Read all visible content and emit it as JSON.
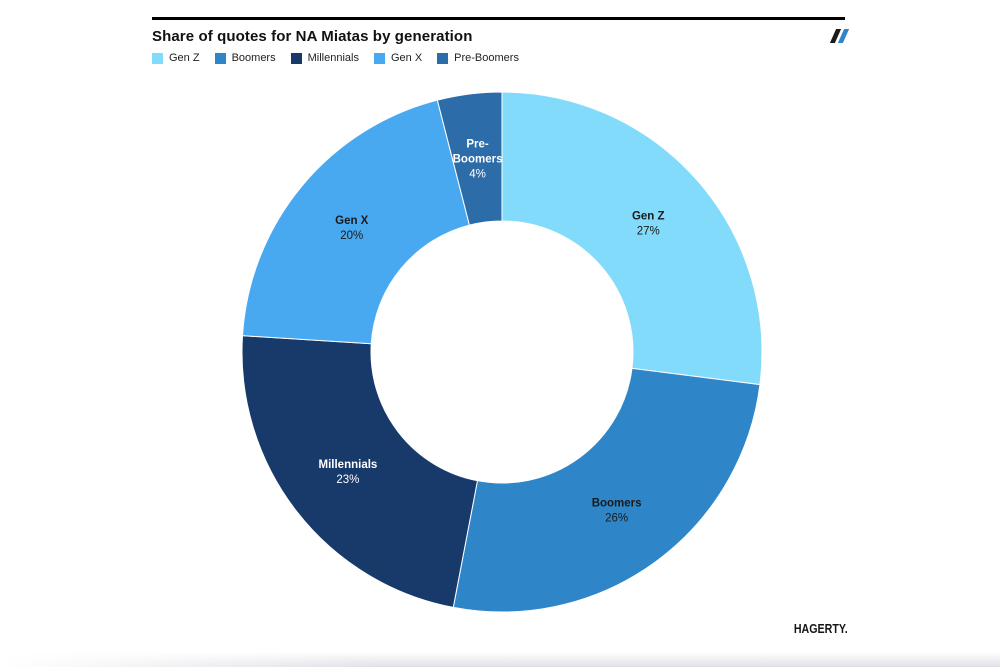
{
  "header": {
    "title": "Share of quotes for NA Miatas by generation"
  },
  "footer": {
    "brand": "HAGERTY."
  },
  "chart_data": {
    "type": "pie",
    "subtype": "donut",
    "title": "Share of quotes for NA Miatas by generation",
    "categories": [
      "Gen Z",
      "Boomers",
      "Millennials",
      "Gen X",
      "Pre-Boomers"
    ],
    "values": [
      27,
      26,
      23,
      20,
      4
    ],
    "unit": "%",
    "colors": [
      "#82dbfa",
      "#2e86c9",
      "#173a6b",
      "#48a8f0",
      "#2c6ca8"
    ],
    "slice_label_colors": [
      "#1a1a1a",
      "#1a1a1a",
      "#ffffff",
      "#1a1a1a",
      "#ffffff"
    ],
    "slice_label_lines": [
      [
        "Gen Z"
      ],
      [
        "Boomers"
      ],
      [
        "Millennials"
      ],
      [
        "Gen X"
      ],
      [
        "Pre-",
        "Boomers"
      ]
    ],
    "legend_entries": [
      "Gen Z",
      "Boomers",
      "Millennials",
      "Gen X",
      "Pre-Boomers"
    ],
    "legend_position": "top-left",
    "start_angle_deg": 0,
    "direction": "clockwise",
    "donut_hole": true
  }
}
